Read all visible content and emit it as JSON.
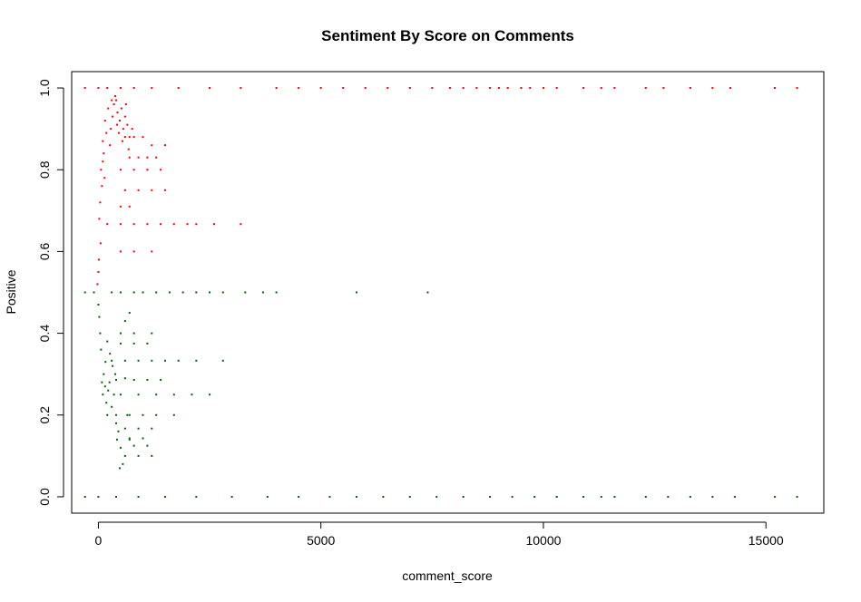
{
  "chart_data": {
    "type": "scatter",
    "title": "Sentiment By Score on Comments",
    "xlabel": "comment_score",
    "ylabel": "Positive",
    "xlim": [
      -600,
      16300
    ],
    "ylim": [
      -0.04,
      1.04
    ],
    "xticks": [
      0,
      5000,
      10000,
      15000
    ],
    "yticks": [
      0.0,
      0.2,
      0.4,
      0.6,
      0.8,
      1.0
    ],
    "xtick_labels": [
      "0",
      "5000",
      "10000",
      "15000"
    ],
    "ytick_labels": [
      "0.0",
      "0.2",
      "0.4",
      "0.6",
      "0.8",
      "1.0"
    ],
    "grid": false,
    "legend": "none",
    "colors": {
      "high": "#ff0000",
      "low": "#006400",
      "frame": "#000000"
    },
    "color_rule": "y > 0.5 drawn red, y < 0.5 drawn dark green",
    "series": [
      {
        "color": "#ff0000",
        "points": [
          [
            -300,
            1.0
          ],
          [
            0,
            1.0
          ],
          [
            200,
            1.0
          ],
          [
            500,
            1.0
          ],
          [
            800,
            1.0
          ],
          [
            1200,
            1.0
          ],
          [
            1800,
            1.0
          ],
          [
            2500,
            1.0
          ],
          [
            3200,
            1.0
          ],
          [
            4000,
            1.0
          ],
          [
            4500,
            1.0
          ],
          [
            5000,
            1.0
          ],
          [
            5500,
            1.0
          ],
          [
            6000,
            1.0
          ],
          [
            6500,
            1.0
          ],
          [
            7000,
            1.0
          ],
          [
            7500,
            1.0
          ],
          [
            7900,
            1.0
          ],
          [
            8200,
            1.0
          ],
          [
            8500,
            1.0
          ],
          [
            8800,
            1.0
          ],
          [
            9000,
            1.0
          ],
          [
            9200,
            1.0
          ],
          [
            9500,
            1.0
          ],
          [
            9700,
            1.0
          ],
          [
            10000,
            1.0
          ],
          [
            10300,
            1.0
          ],
          [
            10900,
            1.0
          ],
          [
            11300,
            1.0
          ],
          [
            11600,
            1.0
          ],
          [
            12300,
            1.0
          ],
          [
            12700,
            1.0
          ],
          [
            13300,
            1.0
          ],
          [
            13800,
            1.0
          ],
          [
            14200,
            1.0
          ],
          [
            15200,
            1.0
          ],
          [
            15700,
            1.0
          ],
          [
            150,
            0.92
          ],
          [
            220,
            0.95
          ],
          [
            280,
            0.9
          ],
          [
            320,
            0.93
          ],
          [
            350,
            0.96
          ],
          [
            400,
            0.97
          ],
          [
            430,
            0.94
          ],
          [
            480,
            0.92
          ],
          [
            520,
            0.95
          ],
          [
            560,
            0.9
          ],
          [
            600,
            0.93
          ],
          [
            650,
            0.91
          ],
          [
            700,
            0.88
          ],
          [
            760,
            0.9
          ],
          [
            180,
            0.89
          ],
          [
            260,
            0.86
          ],
          [
            300,
            0.97
          ],
          [
            380,
            0.98
          ],
          [
            420,
            0.91
          ],
          [
            460,
            0.89
          ],
          [
            540,
            0.87
          ],
          [
            620,
            0.96
          ],
          [
            680,
            0.85
          ],
          [
            100,
            0.87
          ],
          [
            60,
            0.8
          ],
          [
            100,
            0.82
          ],
          [
            140,
            0.78
          ],
          [
            80,
            0.76
          ],
          [
            40,
            0.72
          ],
          [
            120,
            0.84
          ],
          [
            20,
            0.68
          ],
          [
            50,
            0.62
          ],
          [
            10,
            0.58
          ],
          [
            0,
            0.55
          ],
          [
            -20,
            0.52
          ],
          [
            600,
            0.88
          ],
          [
            800,
            0.88
          ],
          [
            1000,
            0.88
          ],
          [
            1200,
            0.86
          ],
          [
            1500,
            0.86
          ],
          [
            700,
            0.83
          ],
          [
            900,
            0.83
          ],
          [
            1100,
            0.83
          ],
          [
            1300,
            0.83
          ],
          [
            500,
            0.8
          ],
          [
            800,
            0.8
          ],
          [
            1100,
            0.8
          ],
          [
            1400,
            0.8
          ],
          [
            600,
            0.75
          ],
          [
            900,
            0.75
          ],
          [
            1200,
            0.75
          ],
          [
            1500,
            0.75
          ],
          [
            500,
            0.71
          ],
          [
            700,
            0.71
          ],
          [
            200,
            0.667
          ],
          [
            500,
            0.667
          ],
          [
            800,
            0.667
          ],
          [
            1100,
            0.667
          ],
          [
            1400,
            0.667
          ],
          [
            1700,
            0.667
          ],
          [
            2000,
            0.667
          ],
          [
            2200,
            0.667
          ],
          [
            2600,
            0.667
          ],
          [
            3200,
            0.667
          ],
          [
            500,
            0.6
          ],
          [
            800,
            0.6
          ],
          [
            1200,
            0.6
          ]
        ]
      },
      {
        "color": "#006400",
        "points": [
          [
            -300,
            0.0
          ],
          [
            0,
            0.0
          ],
          [
            400,
            0.0
          ],
          [
            900,
            0.0
          ],
          [
            1500,
            0.0
          ],
          [
            2200,
            0.0
          ],
          [
            3000,
            0.0
          ],
          [
            3800,
            0.0
          ],
          [
            4500,
            0.0
          ],
          [
            5200,
            0.0
          ],
          [
            5800,
            0.0
          ],
          [
            6400,
            0.0
          ],
          [
            7000,
            0.0
          ],
          [
            7600,
            0.0
          ],
          [
            8200,
            0.0
          ],
          [
            8800,
            0.0
          ],
          [
            9300,
            0.0
          ],
          [
            9800,
            0.0
          ],
          [
            10300,
            0.0
          ],
          [
            10900,
            0.0
          ],
          [
            11300,
            0.0
          ],
          [
            11600,
            0.0
          ],
          [
            12300,
            0.0
          ],
          [
            12800,
            0.0
          ],
          [
            13300,
            0.0
          ],
          [
            13800,
            0.0
          ],
          [
            14300,
            0.0
          ],
          [
            15200,
            0.0
          ],
          [
            15700,
            0.0
          ],
          [
            100,
            0.25
          ],
          [
            150,
            0.27
          ],
          [
            180,
            0.23
          ],
          [
            220,
            0.26
          ],
          [
            250,
            0.28
          ],
          [
            300,
            0.22
          ],
          [
            120,
            0.3
          ],
          [
            200,
            0.2
          ],
          [
            350,
            0.25
          ],
          [
            400,
            0.18
          ],
          [
            450,
            0.16
          ],
          [
            500,
            0.12
          ],
          [
            550,
            0.08
          ],
          [
            600,
            0.1
          ],
          [
            480,
            0.07
          ],
          [
            420,
            0.14
          ],
          [
            380,
            0.3
          ],
          [
            320,
            0.32
          ],
          [
            260,
            0.35
          ],
          [
            200,
            0.38
          ],
          [
            160,
            0.33
          ],
          [
            80,
            0.28
          ],
          [
            60,
            0.36
          ],
          [
            40,
            0.4
          ],
          [
            20,
            0.44
          ],
          [
            0,
            0.47
          ],
          [
            700,
            0.14
          ],
          [
            650,
            0.2
          ],
          [
            600,
            0.29
          ],
          [
            300,
            0.333
          ],
          [
            600,
            0.333
          ],
          [
            900,
            0.333
          ],
          [
            1200,
            0.333
          ],
          [
            1500,
            0.333
          ],
          [
            1800,
            0.333
          ],
          [
            2200,
            0.333
          ],
          [
            2800,
            0.333
          ],
          [
            400,
            0.286
          ],
          [
            800,
            0.286
          ],
          [
            1100,
            0.286
          ],
          [
            1400,
            0.286
          ],
          [
            500,
            0.25
          ],
          [
            900,
            0.25
          ],
          [
            1300,
            0.25
          ],
          [
            1700,
            0.25
          ],
          [
            2100,
            0.25
          ],
          [
            2500,
            0.25
          ],
          [
            400,
            0.2
          ],
          [
            700,
            0.2
          ],
          [
            1000,
            0.2
          ],
          [
            1300,
            0.2
          ],
          [
            1700,
            0.2
          ],
          [
            500,
            0.4
          ],
          [
            800,
            0.4
          ],
          [
            1200,
            0.4
          ],
          [
            600,
            0.43
          ],
          [
            700,
            0.45
          ],
          [
            500,
            0.375
          ],
          [
            800,
            0.375
          ],
          [
            1100,
            0.375
          ],
          [
            600,
            0.167
          ],
          [
            900,
            0.167
          ],
          [
            1200,
            0.167
          ],
          [
            700,
            0.143
          ],
          [
            1000,
            0.143
          ],
          [
            800,
            0.125
          ],
          [
            1100,
            0.125
          ],
          [
            900,
            0.1
          ],
          [
            1200,
            0.1
          ]
        ]
      },
      {
        "color": "#006400",
        "points": [
          [
            -300,
            0.5
          ],
          [
            -100,
            0.5
          ],
          [
            300,
            0.5
          ],
          [
            500,
            0.5
          ],
          [
            800,
            0.5
          ],
          [
            1000,
            0.5
          ],
          [
            1300,
            0.5
          ],
          [
            1600,
            0.5
          ],
          [
            1900,
            0.5
          ],
          [
            2200,
            0.5
          ],
          [
            2500,
            0.5
          ],
          [
            2800,
            0.5
          ],
          [
            3300,
            0.5
          ],
          [
            3700,
            0.5
          ],
          [
            4000,
            0.5
          ],
          [
            5800,
            0.5
          ],
          [
            7400,
            0.5
          ]
        ]
      }
    ]
  }
}
